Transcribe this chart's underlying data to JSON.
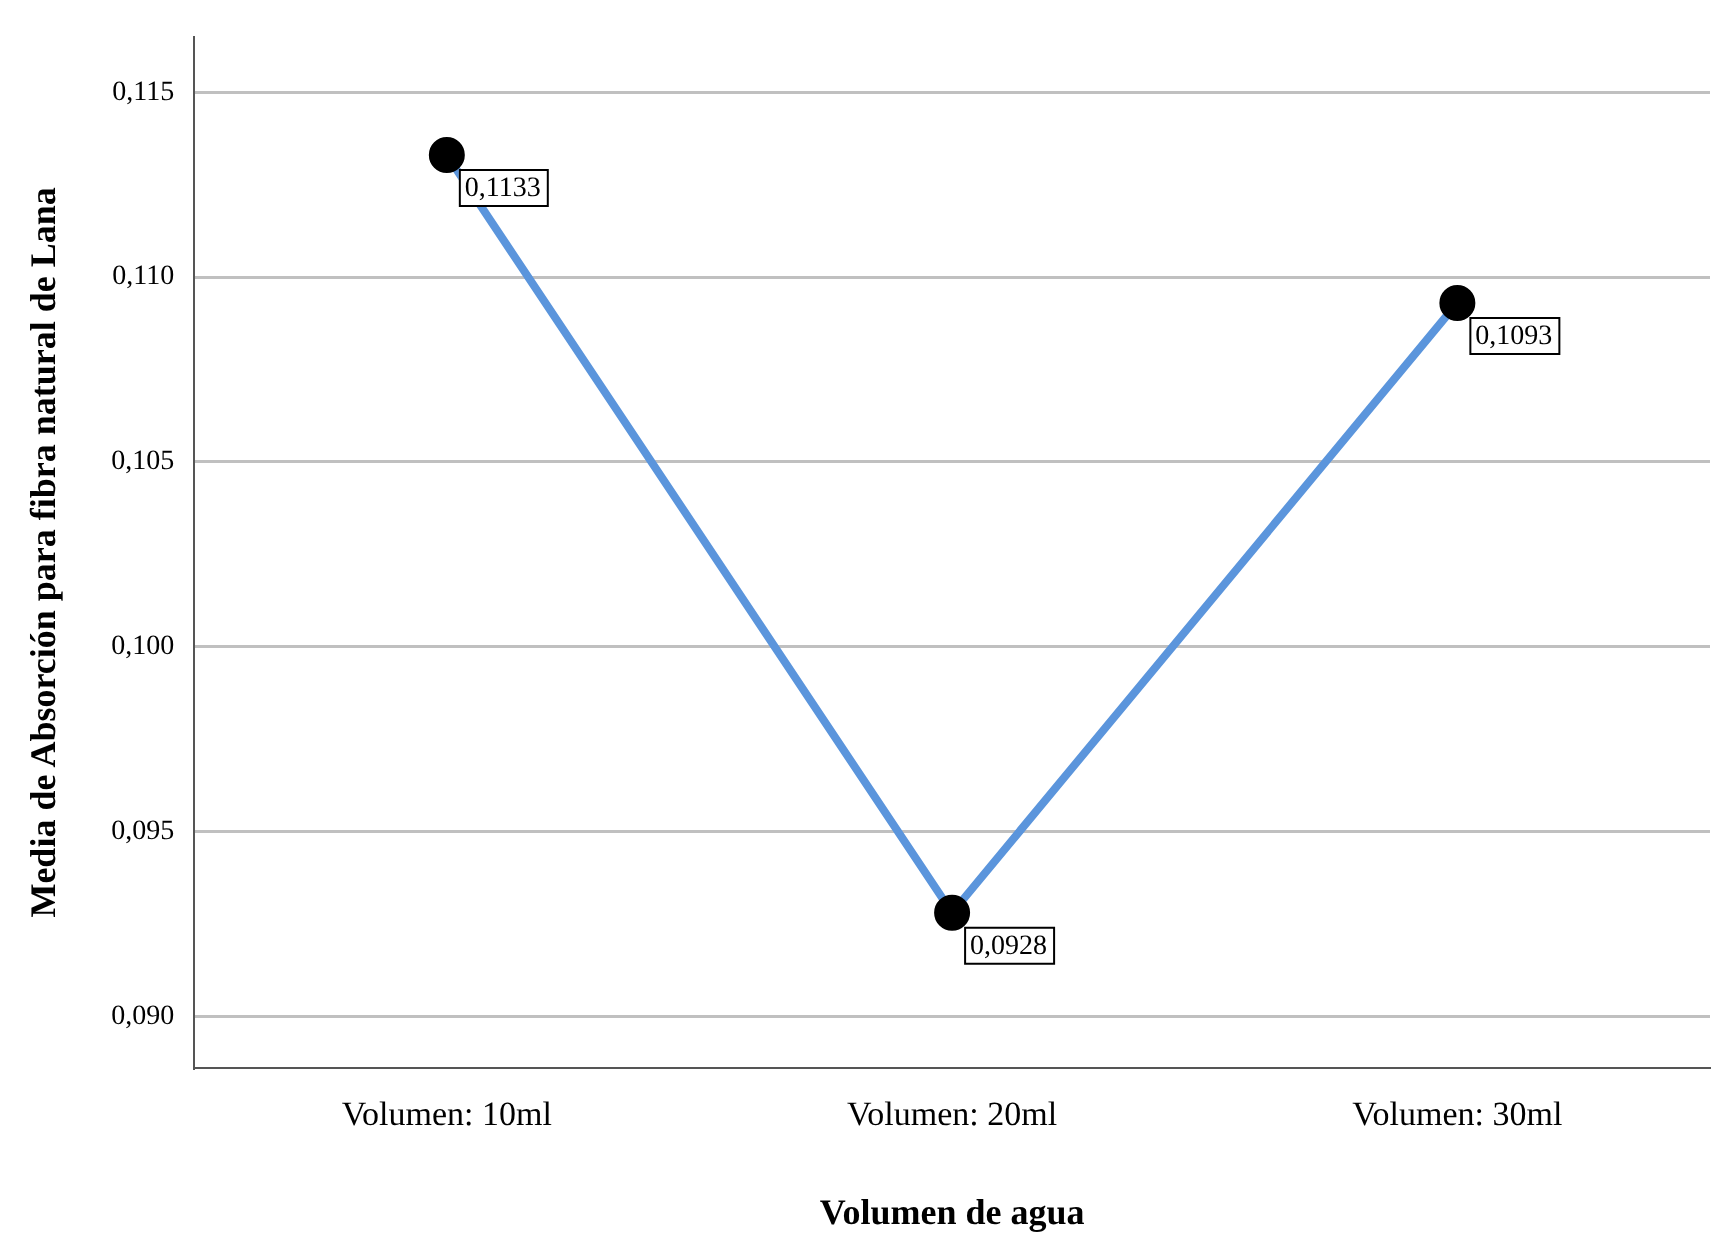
{
  "chart_data": {
    "type": "line",
    "xlabel": "Volumen de agua",
    "ylabel": "Media de Absorción para fibra natural de Lana",
    "categories": [
      "Volumen: 10ml",
      "Volumen: 20ml",
      "Volumen: 30ml"
    ],
    "series": [
      {
        "color": "#5b95dc",
        "values": [
          0.1133,
          0.0928,
          0.1093
        ],
        "value_labels": [
          "0,1133",
          "0,0928",
          "0,1093"
        ]
      }
    ],
    "ylim": [
      0.0886,
      0.1165
    ],
    "yticks": [
      {
        "value": 0.09,
        "label": "0,090"
      },
      {
        "value": 0.095,
        "label": "0,095"
      },
      {
        "value": 0.1,
        "label": "0,100"
      },
      {
        "value": 0.105,
        "label": "0,105"
      },
      {
        "value": 0.11,
        "label": "0,110"
      },
      {
        "value": 0.115,
        "label": "0,115"
      }
    ],
    "grid": "y",
    "legend": false,
    "marker": "circle",
    "line_style": "solid"
  }
}
